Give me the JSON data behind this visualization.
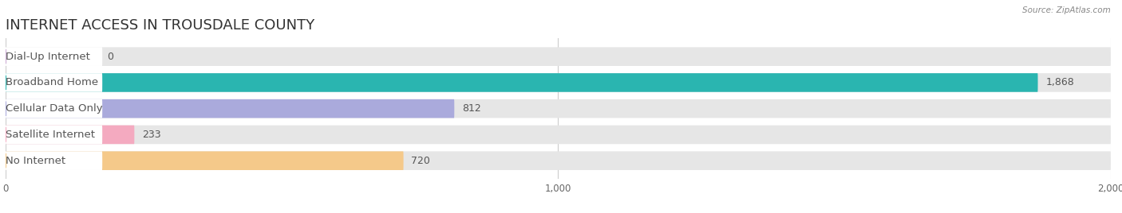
{
  "title": "INTERNET ACCESS IN TROUSDALE COUNTY",
  "source": "Source: ZipAtlas.com",
  "categories": [
    "Dial-Up Internet",
    "Broadband Home",
    "Cellular Data Only",
    "Satellite Internet",
    "No Internet"
  ],
  "values": [
    0,
    1868,
    812,
    233,
    720
  ],
  "bar_colors": [
    "#ccaad4",
    "#2ab5b0",
    "#aaaadc",
    "#f4aac0",
    "#f5c98a"
  ],
  "background_color": "#ffffff",
  "bar_bg_color": "#e6e6e6",
  "xlim": [
    0,
    2000
  ],
  "xticks": [
    0,
    1000,
    2000
  ],
  "bar_height": 0.72,
  "label_fontsize": 9.5,
  "value_fontsize": 9,
  "title_fontsize": 13
}
